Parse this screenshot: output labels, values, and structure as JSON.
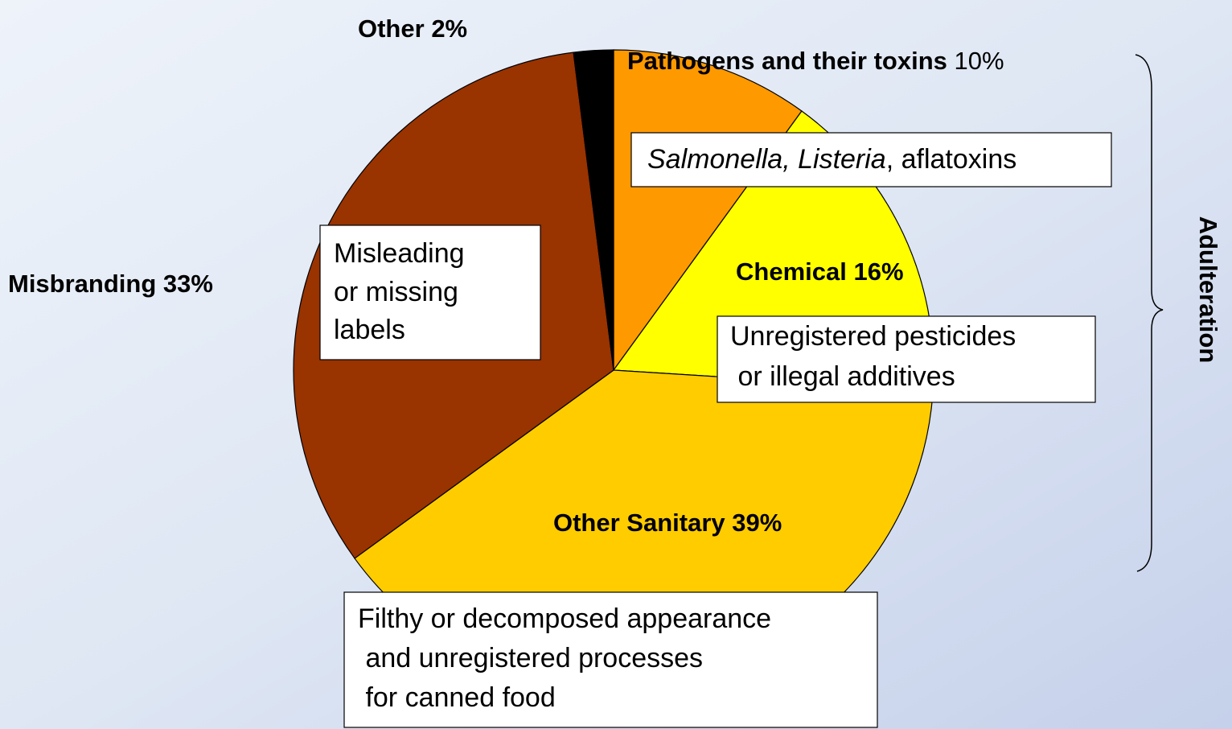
{
  "chart_data": {
    "type": "pie",
    "categories": [
      "Pathogens and their toxins",
      "Chemical",
      "Other Sanitary",
      "Misbranding",
      "Other"
    ],
    "values": [
      10,
      16,
      39,
      33,
      2
    ],
    "value_labels": [
      "10%",
      "16%",
      "39%",
      "33%",
      "2%"
    ],
    "colors": [
      "#ff9900",
      "#ffff00",
      "#ffcc00",
      "#993300",
      "#000000"
    ],
    "annotations": [
      {
        "italic": "Salmonella, Listeria",
        "text": ", aflatoxins"
      },
      {
        "lines": [
          "Misleading",
          "or missing",
          "labels"
        ]
      },
      {
        "lines": [
          "Unregistered pesticides",
          " or illegal additives"
        ]
      },
      {
        "lines": [
          "Filthy or decomposed appearance",
          " and unregistered processes",
          " for canned food"
        ]
      }
    ],
    "group_label": "Adulteration"
  }
}
